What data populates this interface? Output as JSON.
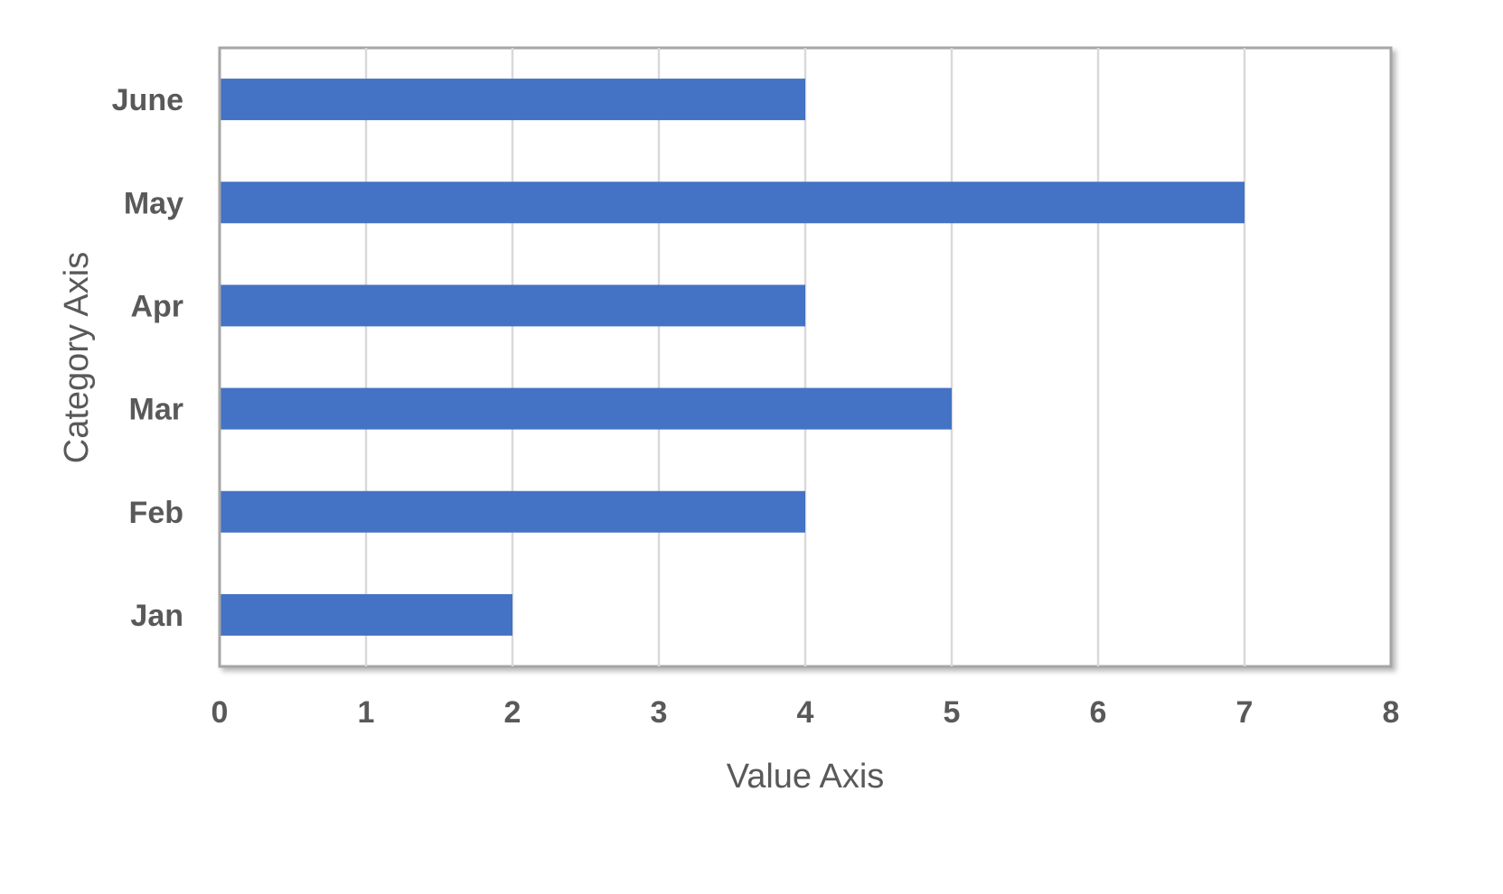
{
  "chart_data": {
    "type": "bar",
    "orientation": "horizontal",
    "categories": [
      "Jan",
      "Feb",
      "Mar",
      "Apr",
      "May",
      "June"
    ],
    "values": [
      2,
      4,
      5,
      4,
      7,
      4
    ],
    "title": "",
    "xlabel": "Value Axis",
    "ylabel": "Category Axis",
    "xlim": [
      0,
      8
    ],
    "xticks": [
      "0",
      "1",
      "2",
      "3",
      "4",
      "5",
      "6",
      "7",
      "8"
    ],
    "grid": true,
    "legend": "none"
  },
  "colors": {
    "bar": "#4472C4",
    "grid": "#d9d9d9",
    "frame": "#a6a6a6",
    "text": "#595959"
  }
}
